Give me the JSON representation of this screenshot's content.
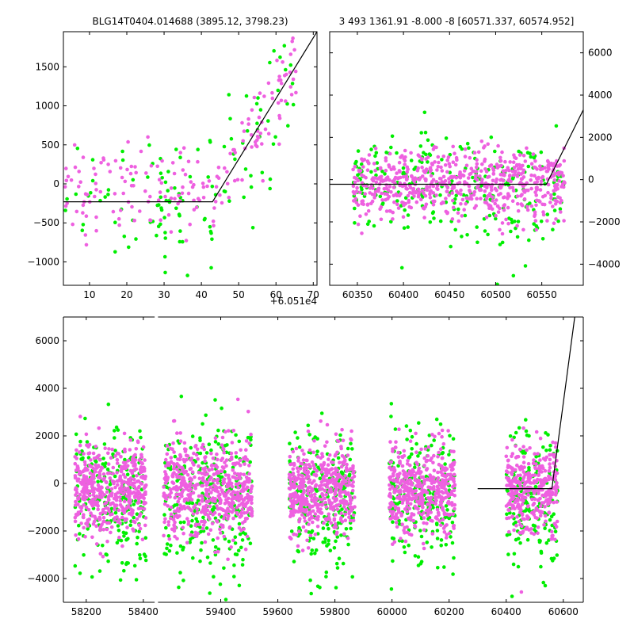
{
  "colors": {
    "green": "#00ee00",
    "magenta": "#ee60e0",
    "model": "#000000"
  },
  "chart_data": [
    {
      "id": "top-left",
      "type": "scatter",
      "title": "BLG14T0404.014688 (3895.12, 3798.23)",
      "x_offset_label": "+6.051e4",
      "xlim": [
        3,
        71
      ],
      "ylim": [
        -1300,
        1950
      ],
      "xticks": [
        10,
        20,
        30,
        40,
        50,
        60,
        70
      ],
      "yticks": [
        -1000,
        -500,
        0,
        500,
        1000,
        1500
      ],
      "y_axis_side": "left",
      "model_line": [
        [
          3,
          -230
        ],
        [
          43,
          -230
        ],
        [
          71,
          1950
        ]
      ],
      "scatter_clusters": [
        {
          "xmin": 3,
          "xmax": 42,
          "ymean": -100,
          "ysd": 330,
          "n_green": 70,
          "n_magenta": 110
        },
        {
          "xmin": 42,
          "xmax": 66,
          "ymean": "model",
          "ysd": 300,
          "n_green": 50,
          "n_magenta": 75
        }
      ]
    },
    {
      "id": "top-right",
      "type": "scatter",
      "title": "3 493 1361.91 -8.000 -8 [60571.337, 60574.952]",
      "xlim": [
        60320,
        60595
      ],
      "ylim": [
        -5000,
        7000
      ],
      "xticks": [
        60350,
        60400,
        60450,
        60500,
        60550
      ],
      "yticks": [
        -4000,
        -2000,
        0,
        2000,
        4000,
        6000
      ],
      "y_axis_side": "right",
      "model_line": [
        [
          60320,
          -220
        ],
        [
          60555,
          -220
        ],
        [
          60595,
          3300
        ]
      ],
      "scatter_clusters": [
        {
          "xmin": 60345,
          "xmax": 60575,
          "ymean": -250,
          "ysd": 900,
          "n_green": 260,
          "n_magenta": 650
        }
      ]
    },
    {
      "id": "bottom",
      "type": "scatter",
      "xlim": [
        58120,
        60670
      ],
      "ylim": [
        -5000,
        7000
      ],
      "xticks": [
        58200,
        58400,
        59400,
        59600,
        59800,
        60000,
        60200,
        60400,
        60600
      ],
      "yticks": [
        -4000,
        -2000,
        0,
        2000,
        4000,
        6000
      ],
      "y_axis_side": "left",
      "axis_break": [
        58440,
        59180
      ],
      "model_line": [
        [
          60300,
          -220
        ],
        [
          60560,
          -220
        ],
        [
          60640,
          7000
        ]
      ],
      "scatter_clusters": [
        {
          "xmin": 58160,
          "xmax": 58410,
          "ymean": -250,
          "ysd": 1000,
          "n_green": 220,
          "n_magenta": 480
        },
        {
          "xmin": 59200,
          "xmax": 59510,
          "ymean": -250,
          "ysd": 1100,
          "n_green": 280,
          "n_magenta": 560
        },
        {
          "xmin": 59640,
          "xmax": 59870,
          "ymean": -250,
          "ysd": 1000,
          "n_green": 230,
          "n_magenta": 480
        },
        {
          "xmin": 59990,
          "xmax": 60220,
          "ymean": -250,
          "ysd": 1000,
          "n_green": 220,
          "n_magenta": 460
        },
        {
          "xmin": 60400,
          "xmax": 60580,
          "ymean": -250,
          "ysd": 1000,
          "n_green": 170,
          "n_magenta": 340
        }
      ]
    }
  ]
}
